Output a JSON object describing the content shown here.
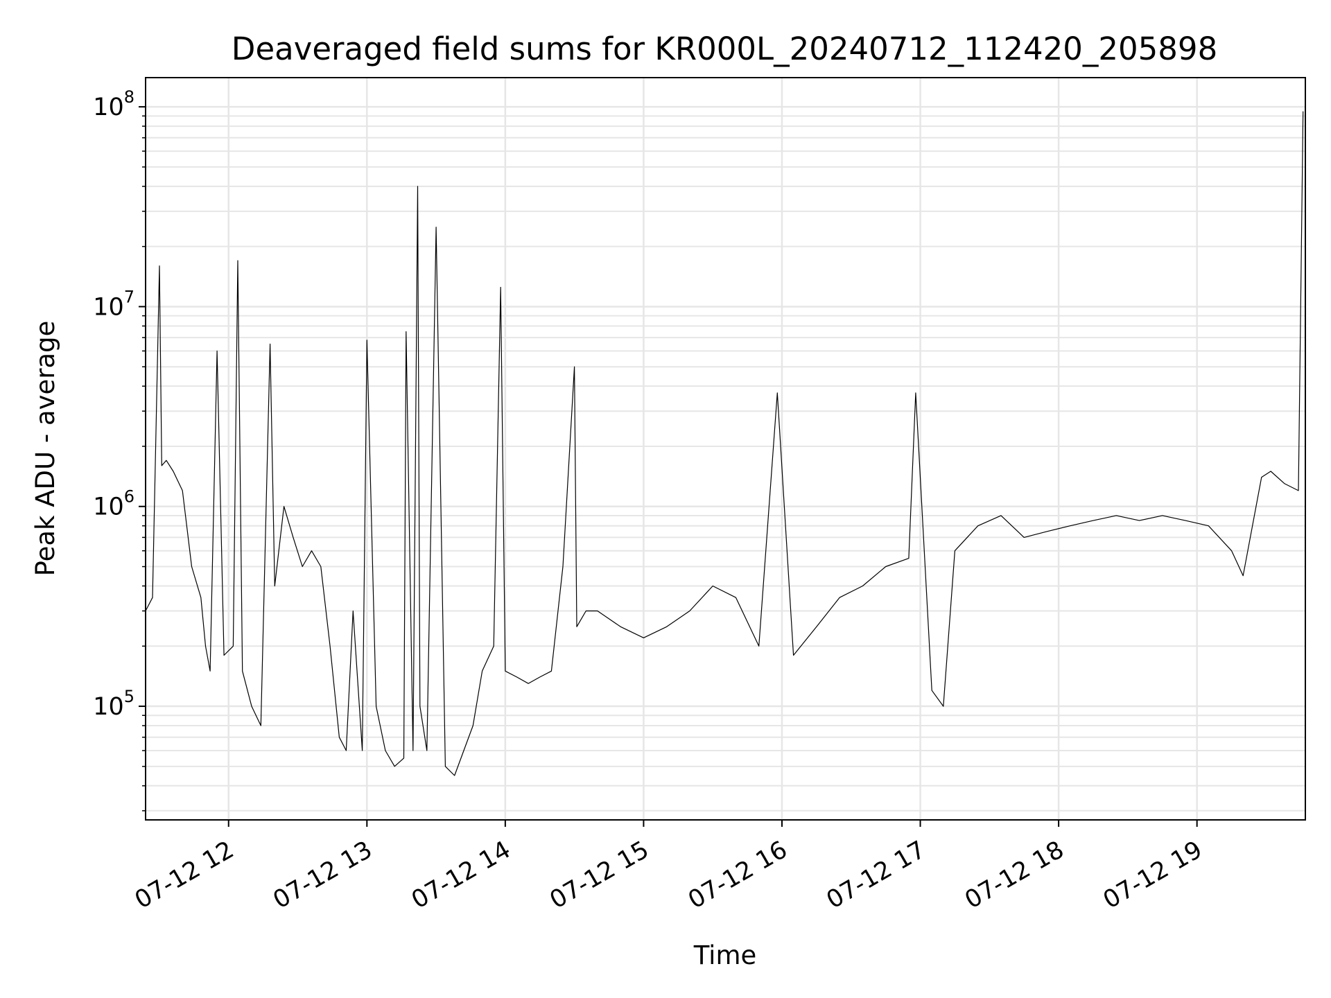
{
  "chart_data": {
    "type": "line",
    "title": "Deaveraged field sums for KR000L_20240712_112420_205898",
    "xlabel": "Time",
    "ylabel": "Peak ADU - average",
    "y_scale": "log",
    "x_axis_type": "datetime",
    "xlim": [
      "2024-07-12 11:24",
      "2024-07-12 19:47"
    ],
    "ylim": [
      27000,
      140000000
    ],
    "grid": true,
    "legend": "none",
    "line_color": "#000000",
    "grid_color": "#e6e6e6",
    "x_ticks": [
      {
        "label": "07-12 12",
        "value": "2024-07-12 12:00"
      },
      {
        "label": "07-12 13",
        "value": "2024-07-12 13:00"
      },
      {
        "label": "07-12 14",
        "value": "2024-07-12 14:00"
      },
      {
        "label": "07-12 15",
        "value": "2024-07-12 15:00"
      },
      {
        "label": "07-12 16",
        "value": "2024-07-12 16:00"
      },
      {
        "label": "07-12 17",
        "value": "2024-07-12 17:00"
      },
      {
        "label": "07-12 18",
        "value": "2024-07-12 18:00"
      },
      {
        "label": "07-12 19",
        "value": "2024-07-12 19:00"
      }
    ],
    "y_ticks": [
      {
        "base": "10",
        "exp": "5",
        "value": 100000
      },
      {
        "base": "10",
        "exp": "6",
        "value": 1000000
      },
      {
        "base": "10",
        "exp": "7",
        "value": 10000000
      },
      {
        "base": "10",
        "exp": "8",
        "value": 100000000
      }
    ],
    "series": [
      {
        "x": [
          "2024-07-12 11:24",
          "2024-07-12 11:27",
          "2024-07-12 11:30",
          "2024-07-12 11:31",
          "2024-07-12 11:33",
          "2024-07-12 11:36",
          "2024-07-12 11:40",
          "2024-07-12 11:44",
          "2024-07-12 11:48",
          "2024-07-12 11:50",
          "2024-07-12 11:52",
          "2024-07-12 11:55",
          "2024-07-12 11:58",
          "2024-07-12 12:02",
          "2024-07-12 12:04",
          "2024-07-12 12:06",
          "2024-07-12 12:10",
          "2024-07-12 12:14",
          "2024-07-12 12:18",
          "2024-07-12 12:20",
          "2024-07-12 12:24",
          "2024-07-12 12:28",
          "2024-07-12 12:32",
          "2024-07-12 12:36",
          "2024-07-12 12:40",
          "2024-07-12 12:44",
          "2024-07-12 12:48",
          "2024-07-12 12:51",
          "2024-07-12 12:54",
          "2024-07-12 12:58",
          "2024-07-12 13:00",
          "2024-07-12 13:04",
          "2024-07-12 13:08",
          "2024-07-12 13:12",
          "2024-07-12 13:16",
          "2024-07-12 13:17",
          "2024-07-12 13:20",
          "2024-07-12 13:22",
          "2024-07-12 13:23",
          "2024-07-12 13:26",
          "2024-07-12 13:30",
          "2024-07-12 13:34",
          "2024-07-12 13:38",
          "2024-07-12 13:42",
          "2024-07-12 13:46",
          "2024-07-12 13:50",
          "2024-07-12 13:55",
          "2024-07-12 13:58",
          "2024-07-12 14:00",
          "2024-07-12 14:05",
          "2024-07-12 14:10",
          "2024-07-12 14:15",
          "2024-07-12 14:20",
          "2024-07-12 14:25",
          "2024-07-12 14:30",
          "2024-07-12 14:31",
          "2024-07-12 14:35",
          "2024-07-12 14:40",
          "2024-07-12 14:50",
          "2024-07-12 15:00",
          "2024-07-12 15:10",
          "2024-07-12 15:20",
          "2024-07-12 15:30",
          "2024-07-12 15:40",
          "2024-07-12 15:50",
          "2024-07-12 15:58",
          "2024-07-12 16:05",
          "2024-07-12 16:15",
          "2024-07-12 16:25",
          "2024-07-12 16:35",
          "2024-07-12 16:45",
          "2024-07-12 16:55",
          "2024-07-12 16:58",
          "2024-07-12 17:05",
          "2024-07-12 17:10",
          "2024-07-12 17:15",
          "2024-07-12 17:25",
          "2024-07-12 17:35",
          "2024-07-12 17:45",
          "2024-07-12 17:55",
          "2024-07-12 18:05",
          "2024-07-12 18:15",
          "2024-07-12 18:25",
          "2024-07-12 18:35",
          "2024-07-12 18:45",
          "2024-07-12 18:55",
          "2024-07-12 19:05",
          "2024-07-12 19:15",
          "2024-07-12 19:20",
          "2024-07-12 19:28",
          "2024-07-12 19:32",
          "2024-07-12 19:38",
          "2024-07-12 19:44",
          "2024-07-12 19:46"
        ],
        "y": [
          300000,
          350000,
          16000000,
          1600000,
          1700000,
          1500000,
          1200000,
          500000,
          350000,
          200000,
          150000,
          6000000,
          180000,
          200000,
          17000000,
          150000,
          100000,
          80000,
          6500000,
          400000,
          1000000,
          700000,
          500000,
          600000,
          500000,
          200000,
          70000,
          60000,
          300000,
          60000,
          6800000,
          100000,
          60000,
          50000,
          55000,
          7500000,
          60000,
          40000000,
          100000,
          60000,
          25000000,
          50000,
          45000,
          60000,
          80000,
          150000,
          200000,
          12500000,
          150000,
          140000,
          130000,
          140000,
          150000,
          500000,
          5000000,
          250000,
          300000,
          300000,
          250000,
          220000,
          250000,
          300000,
          400000,
          350000,
          200000,
          3700000,
          180000,
          250000,
          350000,
          400000,
          500000,
          550000,
          3700000,
          120000,
          100000,
          600000,
          800000,
          900000,
          700000,
          750000,
          800000,
          850000,
          900000,
          850000,
          900000,
          850000,
          800000,
          600000,
          450000,
          1400000,
          1500000,
          1300000,
          1200000,
          95000000
        ]
      }
    ]
  }
}
